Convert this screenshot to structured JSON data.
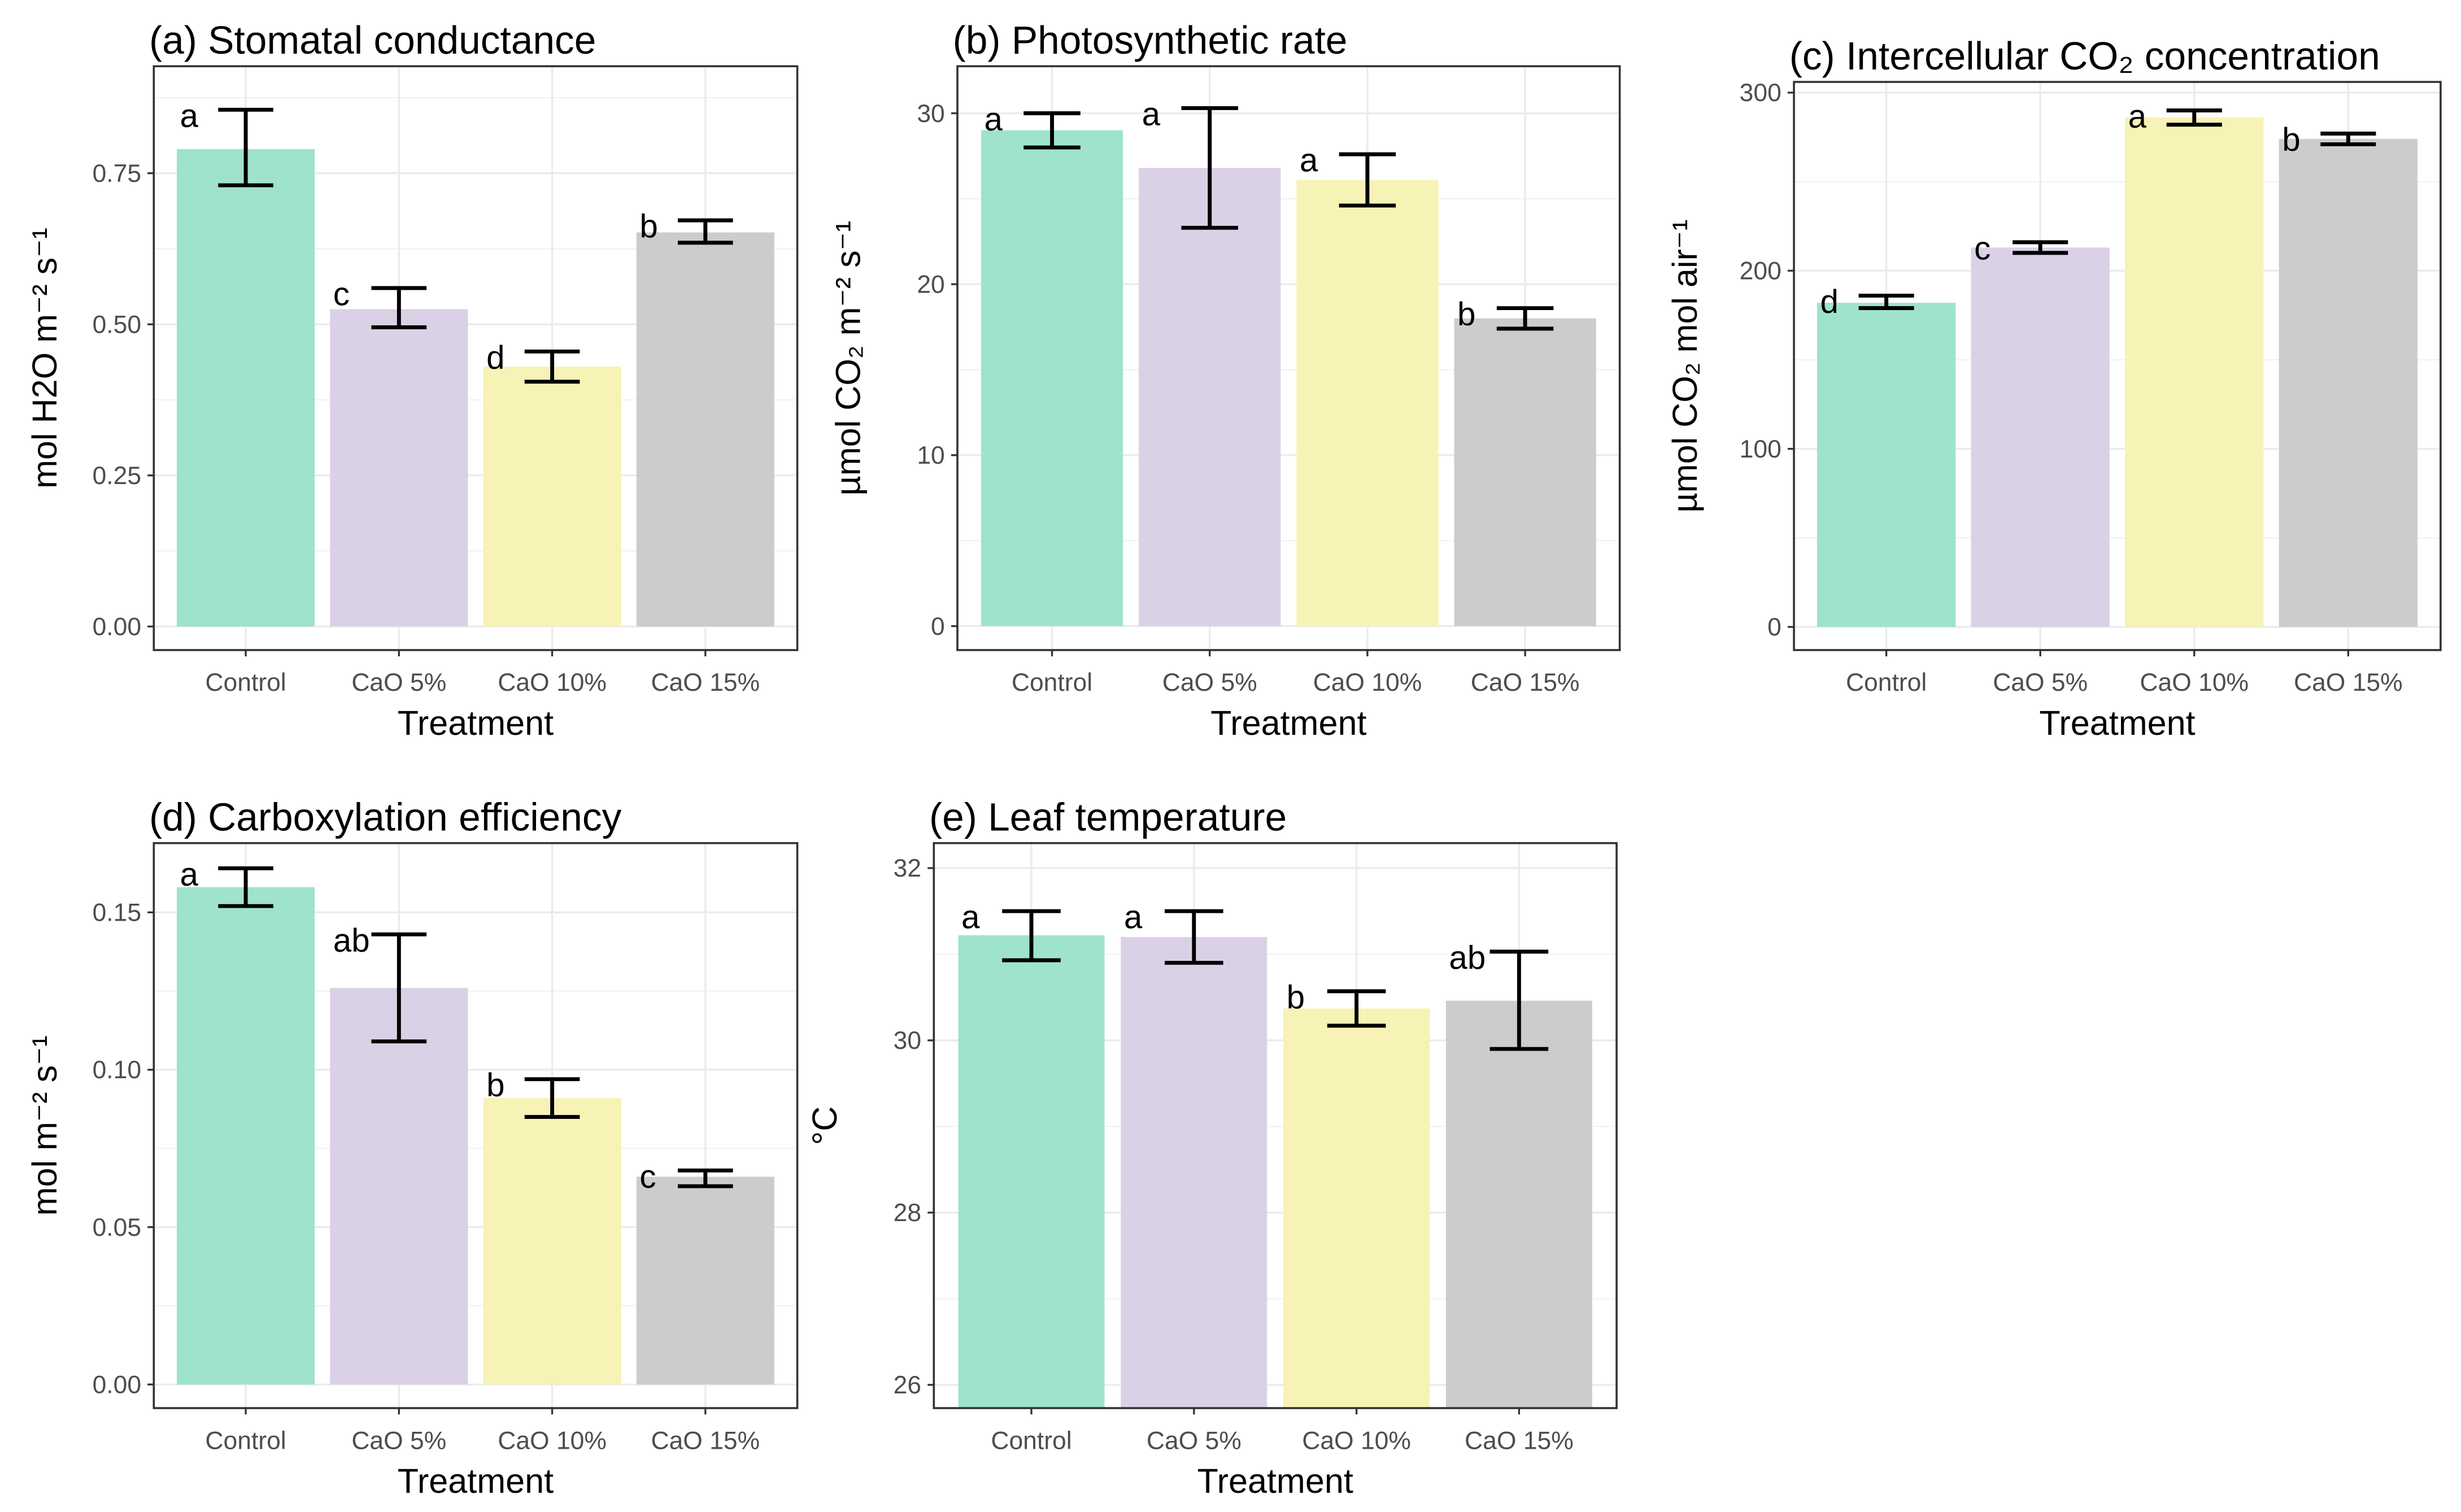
{
  "chart_data": [
    {
      "type": "bar",
      "title": "(a) Stomatal conductance",
      "xlabel": "Treatment",
      "ylabel": "mol H2O m⁻² s⁻¹",
      "categories": [
        "Control",
        "CaO 5%",
        "CaO 10%",
        "CaO 15%"
      ],
      "values": [
        0.79,
        0.525,
        0.43,
        0.652
      ],
      "error_low": [
        0.73,
        0.495,
        0.405,
        0.635
      ],
      "error_high": [
        0.855,
        0.56,
        0.455,
        0.672
      ],
      "letters": [
        "a",
        "c",
        "d",
        "b"
      ],
      "yticks": [
        0,
        0.25,
        0.5,
        0.75
      ],
      "ytick_labels": [
        "0.00",
        "0.25",
        "0.50",
        "0.75"
      ],
      "ylim": [
        -0.039,
        0.927
      ]
    },
    {
      "type": "bar",
      "title": "(b) Photosynthetic rate",
      "xlabel": "Treatment",
      "ylabel": "µmol CO₂ m⁻² s⁻¹",
      "categories": [
        "Control",
        "CaO 5%",
        "CaO 10%",
        "CaO 15%"
      ],
      "values": [
        29.0,
        26.8,
        26.1,
        18.0
      ],
      "error_low": [
        28.0,
        23.3,
        24.6,
        17.4
      ],
      "error_high": [
        30.0,
        30.3,
        27.6,
        18.6
      ],
      "letters": [
        "a",
        "a",
        "a",
        "b"
      ],
      "yticks": [
        0,
        10,
        20,
        30
      ],
      "ytick_labels": [
        "0",
        "10",
        "20",
        "30"
      ],
      "ylim": [
        -1.4,
        32.75
      ]
    },
    {
      "type": "bar",
      "title": "(c) Intercellular CO₂ concentration",
      "xlabel": "Treatment",
      "ylabel": "µmol CO₂ mol air⁻¹",
      "categories": [
        "Control",
        "CaO 5%",
        "CaO 10%",
        "CaO 15%"
      ],
      "values": [
        182,
        213,
        286,
        274
      ],
      "error_low": [
        179,
        210,
        282,
        271
      ],
      "error_high": [
        186,
        216,
        290,
        277
      ],
      "letters": [
        "d",
        "c",
        "a",
        "b"
      ],
      "yticks": [
        0,
        100,
        200,
        300
      ],
      "ytick_labels": [
        "0",
        "100",
        "200",
        "300"
      ],
      "ylim": [
        -13,
        306
      ]
    },
    {
      "type": "bar",
      "title": "(d) Carboxylation efficiency",
      "xlabel": "Treatment",
      "ylabel": "mol m⁻² s⁻¹",
      "categories": [
        "Control",
        "CaO 5%",
        "CaO 10%",
        "CaO 15%"
      ],
      "values": [
        0.158,
        0.126,
        0.091,
        0.066
      ],
      "error_low": [
        0.152,
        0.109,
        0.085,
        0.063
      ],
      "error_high": [
        0.164,
        0.143,
        0.097,
        0.068
      ],
      "letters": [
        "a",
        "ab",
        "b",
        "c"
      ],
      "yticks": [
        0,
        0.05,
        0.1,
        0.15
      ],
      "ytick_labels": [
        "0.00",
        "0.05",
        "0.10",
        "0.15"
      ],
      "ylim": [
        -0.0075,
        0.172
      ]
    },
    {
      "type": "bar",
      "title": "(e) Leaf temperature",
      "xlabel": "Treatment",
      "ylabel": "°C",
      "categories": [
        "Control",
        "CaO 5%",
        "CaO 10%",
        "CaO 15%"
      ],
      "values": [
        31.22,
        31.2,
        30.37,
        30.46
      ],
      "error_low": [
        30.93,
        30.9,
        30.17,
        29.9
      ],
      "error_high": [
        31.5,
        31.5,
        30.57,
        31.03
      ],
      "letters": [
        "a",
        "a",
        "b",
        "ab"
      ],
      "yticks": [
        26,
        28,
        30,
        32
      ],
      "ytick_labels": [
        "26",
        "28",
        "30",
        "32"
      ],
      "ylim": [
        25.73,
        32.29
      ]
    }
  ],
  "colors": [
    "#9fe3cc",
    "#dad1e6",
    "#f7f2b5",
    "#cccccc"
  ]
}
